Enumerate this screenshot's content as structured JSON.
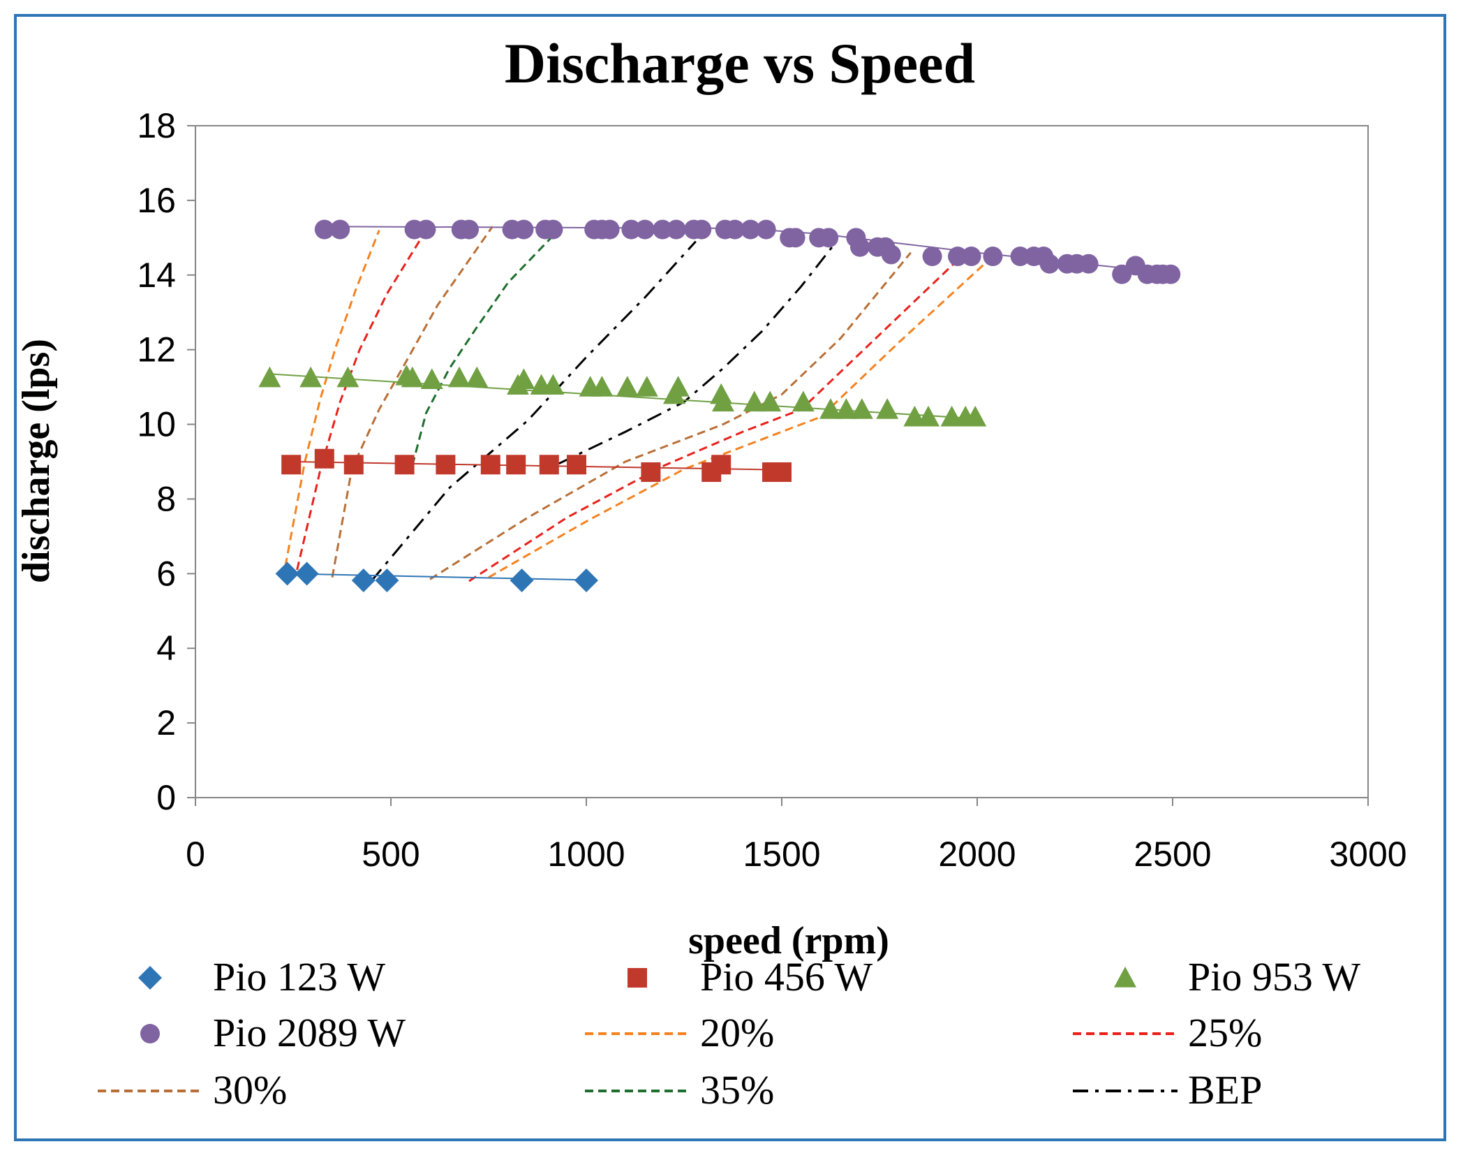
{
  "chart_data": {
    "type": "scatter",
    "title": "Discharge vs Speed",
    "xlabel": "speed (rpm)",
    "ylabel": "discharge (lps)",
    "xlim": [
      0,
      3000
    ],
    "ylim": [
      0,
      18
    ],
    "xticks": [
      0,
      500,
      1000,
      1500,
      2000,
      2500,
      3000
    ],
    "yticks": [
      0,
      2,
      4,
      6,
      8,
      10,
      12,
      14,
      16,
      18
    ],
    "grid": false,
    "legend_position": "bottom",
    "series": [
      {
        "name": "Pio 123 W",
        "kind": "markers",
        "marker": "diamond",
        "color": "#2E75B6",
        "x": [
          235,
          285,
          430,
          490,
          835,
          1000
        ],
        "y": [
          6.0,
          6.0,
          5.82,
          5.82,
          5.82,
          5.82
        ],
        "trend": {
          "x": [
            235,
            1000
          ],
          "y": [
            6.0,
            5.83
          ]
        }
      },
      {
        "name": "Pio 456 W",
        "kind": "markers",
        "marker": "square",
        "color": "#C0392B",
        "x": [
          245,
          330,
          405,
          535,
          640,
          755,
          820,
          905,
          975,
          1165,
          1320,
          1345,
          1475,
          1500
        ],
        "y": [
          8.92,
          9.08,
          8.92,
          8.92,
          8.92,
          8.92,
          8.92,
          8.92,
          8.92,
          8.72,
          8.72,
          8.92,
          8.72,
          8.72
        ],
        "trend": {
          "x": [
            245,
            1500
          ],
          "y": [
            9.0,
            8.78
          ]
        }
      },
      {
        "name": "Pio 953 W",
        "kind": "markers",
        "marker": "triangle",
        "color": "#70A042",
        "x": [
          190,
          295,
          390,
          540,
          555,
          605,
          675,
          720,
          825,
          840,
          885,
          915,
          1010,
          1040,
          1105,
          1155,
          1225,
          1235,
          1345,
          1350,
          1430,
          1470,
          1555,
          1625,
          1665,
          1705,
          1770,
          1840,
          1875,
          1935,
          1970,
          1995
        ],
        "y": [
          11.25,
          11.25,
          11.25,
          11.3,
          11.25,
          11.2,
          11.25,
          11.25,
          11.05,
          11.2,
          11.05,
          11.05,
          11.0,
          11.0,
          11.0,
          11.0,
          10.8,
          11.0,
          10.8,
          10.6,
          10.6,
          10.6,
          10.6,
          10.4,
          10.4,
          10.4,
          10.4,
          10.2,
          10.2,
          10.2,
          10.2,
          10.2
        ],
        "trend": {
          "x": [
            190,
            2000
          ],
          "y": [
            11.35,
            10.15
          ]
        }
      },
      {
        "name": "Pio 2089 W",
        "kind": "markers",
        "marker": "circle",
        "color": "#8064A2",
        "x": [
          330,
          370,
          560,
          590,
          680,
          700,
          810,
          840,
          895,
          915,
          1020,
          1040,
          1060,
          1115,
          1150,
          1195,
          1230,
          1275,
          1295,
          1355,
          1380,
          1420,
          1460,
          1520,
          1535,
          1595,
          1620,
          1690,
          1700,
          1745,
          1765,
          1780,
          1885,
          1950,
          1985,
          2040,
          2110,
          2145,
          2170,
          2185,
          2230,
          2255,
          2285,
          2370,
          2405,
          2435,
          2460,
          2475,
          2495
        ],
        "y": [
          15.22,
          15.22,
          15.22,
          15.22,
          15.22,
          15.22,
          15.22,
          15.22,
          15.22,
          15.22,
          15.22,
          15.22,
          15.22,
          15.22,
          15.22,
          15.22,
          15.22,
          15.22,
          15.22,
          15.22,
          15.22,
          15.22,
          15.22,
          15.0,
          15.0,
          15.0,
          15.0,
          15.0,
          14.75,
          14.75,
          14.75,
          14.55,
          14.5,
          14.5,
          14.5,
          14.5,
          14.5,
          14.5,
          14.5,
          14.3,
          14.3,
          14.3,
          14.3,
          14.02,
          14.25,
          14.02,
          14.02,
          14.02,
          14.02
        ],
        "trend": {
          "x": [
            330,
            1400,
            1600,
            2000,
            2500
          ],
          "y": [
            15.3,
            15.25,
            15.1,
            14.6,
            14.05
          ]
        }
      },
      {
        "name": "20%",
        "kind": "line",
        "dash": "dashed",
        "color": "#F58220",
        "segments": [
          {
            "x": [
              230,
              280,
              320,
              360,
              410,
              470
            ],
            "y": [
              6.2,
              9.0,
              10.7,
              12.1,
              13.6,
              15.2
            ]
          },
          {
            "x": [
              750,
              1000,
              1250,
              1450,
              1600,
              1800,
              2050
            ],
            "y": [
              5.9,
              7.4,
              8.8,
              9.6,
              10.2,
              12.2,
              14.6
            ]
          }
        ]
      },
      {
        "name": "25%",
        "kind": "line",
        "dash": "dashed",
        "color": "#E8211B",
        "segments": [
          {
            "x": [
              260,
              320,
              370,
              420,
              490,
              590
            ],
            "y": [
              6.1,
              8.8,
              10.6,
              12.0,
              13.5,
              15.2
            ]
          },
          {
            "x": [
              700,
              950,
              1200,
              1400,
              1550,
              1750,
              1950
            ],
            "y": [
              5.8,
              7.5,
              8.9,
              9.8,
              10.4,
              12.4,
              14.4
            ]
          }
        ]
      },
      {
        "name": "30%",
        "kind": "line",
        "dash": "dashed",
        "color": "#B86F37",
        "segments": [
          {
            "x": [
              350,
              400,
              470,
              540,
              620,
              760
            ],
            "y": [
              5.9,
              8.8,
              10.4,
              11.7,
              13.2,
              15.3
            ]
          },
          {
            "x": [
              600,
              850,
              1100,
              1350,
              1500,
              1650,
              1830
            ],
            "y": [
              5.85,
              7.5,
              9.0,
              10.0,
              10.8,
              12.3,
              14.6
            ]
          }
        ]
      },
      {
        "name": "35%",
        "kind": "line",
        "dash": "dashed",
        "color": "#1F6E2E",
        "segments": [
          {
            "x": [
              555,
              590,
              650,
              720,
              800,
              910
            ],
            "y": [
              8.9,
              10.3,
              11.5,
              12.6,
              13.8,
              15.0
            ]
          }
        ]
      },
      {
        "name": "BEP",
        "kind": "line",
        "dash": "dashdot",
        "color": "#000000",
        "segments": [
          {
            "x": [
              450,
              650,
              850,
              1000,
              1150,
              1280
            ],
            "y": [
              5.8,
              8.3,
              10.1,
              11.8,
              13.4,
              14.9
            ]
          },
          {
            "x": [
              930,
              1100,
              1250,
              1350,
              1450,
              1550,
              1640
            ],
            "y": [
              8.95,
              9.8,
              10.6,
              11.5,
              12.5,
              13.7,
              14.9
            ]
          }
        ]
      }
    ]
  }
}
